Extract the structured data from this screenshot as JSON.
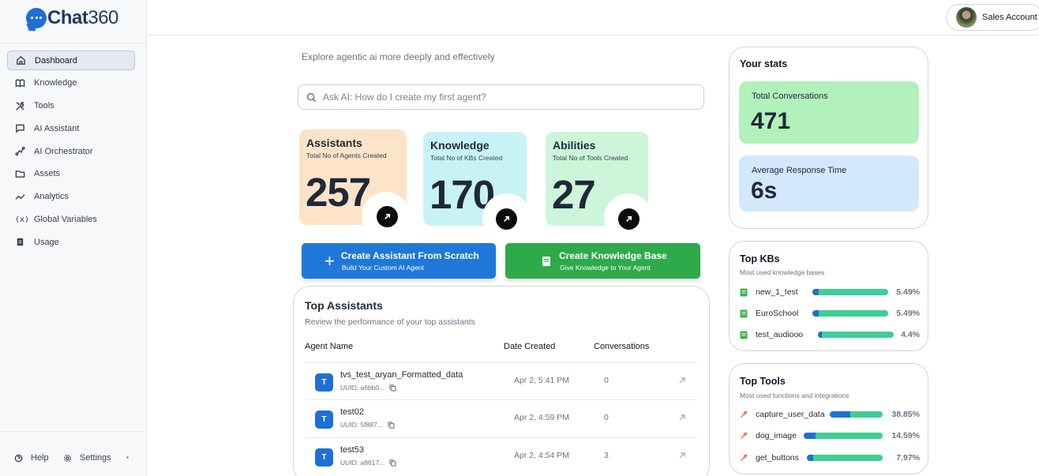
{
  "brand": {
    "name_bold": "Chat",
    "name_light": "360"
  },
  "sidebar": {
    "items": [
      {
        "label": "Dashboard",
        "icon": "home-icon",
        "active": true
      },
      {
        "label": "Knowledge",
        "icon": "book-icon"
      },
      {
        "label": "Tools",
        "icon": "tools-icon"
      },
      {
        "label": "AI Assistant",
        "icon": "chat-icon"
      },
      {
        "label": "AI Orchestrator",
        "icon": "flow-icon"
      },
      {
        "label": "Assets",
        "icon": "folder-icon"
      },
      {
        "label": "Analytics",
        "icon": "trend-icon"
      },
      {
        "label": "Global Variables",
        "icon": "variable-icon",
        "glyph": "(x)"
      },
      {
        "label": "Usage",
        "icon": "usage-icon"
      }
    ],
    "help": "Help",
    "settings": "Settings"
  },
  "topbar": {
    "account": "Sales Account"
  },
  "main": {
    "subtitle": "Explore agentic ai more deeply and effectively",
    "search_placeholder": "Ask AI: How do I create my first agent?",
    "cards": [
      {
        "title": "Assistants",
        "sub": "Total No of Agents Created",
        "value": "257",
        "color": "#fde3c8"
      },
      {
        "title": "Knowledge",
        "sub": "Total No of KBs Created",
        "value": "170",
        "color": "#c7f3f6"
      },
      {
        "title": "Abilities",
        "sub": "Total No of Tools Created",
        "value": "27",
        "color": "#cdf5d9"
      }
    ],
    "cta_create_assistant": {
      "title": "Create Assistant From Scratch",
      "sub": "Build Your Custom AI Agent",
      "color": "#1f78d8"
    },
    "cta_create_kb": {
      "title": "Create Knowledge Base",
      "sub": "Give Knowledge to Your Agent",
      "color": "#2eaa4a"
    }
  },
  "top_assistants": {
    "title": "Top Assistants",
    "subtitle": "Review the performance of your top assistants",
    "columns": [
      "Agent Name",
      "Date Created",
      "Conversations"
    ],
    "rows": [
      {
        "badge": "T",
        "name": "tvs_test_aryan_Formatted_data",
        "uid": "UUID: a6bb0...",
        "date": "Apr 2, 5:41 PM",
        "conversations": "0"
      },
      {
        "badge": "T",
        "name": "test02",
        "uid": "UUID: 5f887...",
        "date": "Apr 2, 4:59 PM",
        "conversations": "0"
      },
      {
        "badge": "T",
        "name": "test53",
        "uid": "UUID: a8617...",
        "date": "Apr 2, 4:54 PM",
        "conversations": "3"
      }
    ]
  },
  "stats": {
    "title": "Your stats",
    "total_conversations": {
      "label": "Total Conversations",
      "value": "471",
      "color": "#b2f0bc"
    },
    "avg_response": {
      "label": "Average Response Time",
      "value": "6s",
      "color": "#d3e8fb"
    }
  },
  "top_kbs": {
    "title": "Top KBs",
    "subtitle": "Most used knowledge bases",
    "items": [
      {
        "name": "new_1_test",
        "pct": "5.49%",
        "value": 5.49
      },
      {
        "name": "EuroSchool",
        "pct": "5.49%",
        "value": 5.49
      },
      {
        "name": "test_audiooo",
        "pct": "4.4%",
        "value": 4.4
      }
    ]
  },
  "top_tools": {
    "title": "Top Tools",
    "subtitle": "Most used functions and integrations",
    "items": [
      {
        "name": "capture_user_data",
        "pct": "38.85%",
        "value": 38.85
      },
      {
        "name": "dog_image",
        "pct": "14.59%",
        "value": 14.59
      },
      {
        "name": "get_buttons",
        "pct": "7.97%",
        "value": 7.97
      }
    ]
  }
}
